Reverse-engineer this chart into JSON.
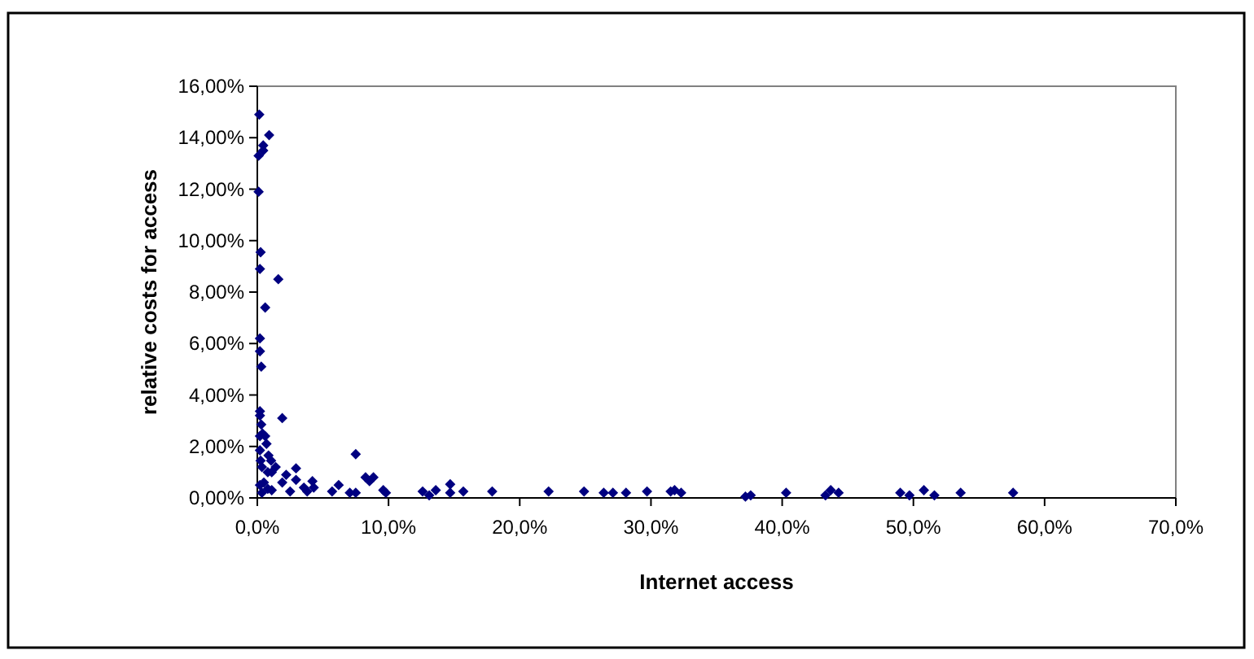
{
  "chart_data": {
    "type": "scatter",
    "xlabel": "Internet access",
    "ylabel": "relative costs for access",
    "marker": "diamond",
    "grid": false,
    "xlim": [
      0,
      70
    ],
    "xticks": [
      {
        "value": 0,
        "label": "0,0%"
      },
      {
        "value": 10,
        "label": "10,0%"
      },
      {
        "value": 20,
        "label": "20,0%"
      },
      {
        "value": 30,
        "label": "30,0%"
      },
      {
        "value": 40,
        "label": "40,0%"
      },
      {
        "value": 50,
        "label": "50,0%"
      },
      {
        "value": 60,
        "label": "60,0%"
      },
      {
        "value": 70,
        "label": "70,0%"
      }
    ],
    "ylim": [
      0,
      16
    ],
    "yticks": [
      {
        "value": 0,
        "label": "0,00%"
      },
      {
        "value": 2,
        "label": "2,00%"
      },
      {
        "value": 4,
        "label": "4,00%"
      },
      {
        "value": 6,
        "label": "6,00%"
      },
      {
        "value": 8,
        "label": "8,00%"
      },
      {
        "value": 10,
        "label": "10,00%"
      },
      {
        "value": 12,
        "label": "12,00%"
      },
      {
        "value": 14,
        "label": "14,00%"
      },
      {
        "value": 16,
        "label": "16,00%"
      }
    ],
    "series": [
      {
        "color": "#000080",
        "x": [
          0.15,
          0.9,
          0.45,
          0.45,
          0.1,
          0.1,
          0.25,
          0.2,
          1.6,
          0.6,
          0.2,
          0.2,
          0.3,
          0.2,
          0.2,
          0.3,
          1.9,
          0.2,
          0.4,
          0.6,
          0.7,
          0.2,
          0.25,
          0.85,
          1.05,
          0.35,
          1.4,
          0.8,
          1.1,
          2.95,
          2.2,
          1.9,
          2.95,
          0.2,
          0.5,
          0.8,
          0.35,
          1.1,
          2.5,
          3.55,
          4.2,
          4.3,
          3.8,
          5.7,
          6.2,
          7.05,
          7.5,
          7.5,
          8.25,
          8.55,
          8.85,
          9.6,
          9.8,
          12.6,
          13.1,
          13.6,
          14.7,
          14.7,
          15.7,
          17.9,
          22.2,
          24.9,
          26.4,
          27.1,
          28.1,
          29.7,
          31.5,
          31.8,
          32.3,
          37.2,
          37.6,
          40.3,
          43.3,
          43.7,
          44.3,
          49.0,
          49.7,
          50.8,
          51.6,
          53.6,
          57.6
        ],
        "values": [
          14.9,
          14.1,
          13.7,
          13.5,
          13.3,
          11.9,
          9.55,
          8.9,
          8.5,
          7.4,
          6.2,
          5.7,
          5.1,
          3.37,
          3.2,
          2.85,
          3.1,
          2.4,
          2.5,
          2.4,
          2.1,
          1.85,
          1.45,
          1.65,
          1.45,
          1.2,
          1.2,
          1.0,
          1.0,
          1.15,
          0.9,
          0.6,
          0.7,
          0.5,
          0.6,
          0.35,
          0.2,
          0.3,
          0.25,
          0.4,
          0.65,
          0.4,
          0.25,
          0.25,
          0.5,
          0.2,
          0.2,
          1.7,
          0.8,
          0.65,
          0.8,
          0.3,
          0.2,
          0.25,
          0.1,
          0.3,
          0.53,
          0.2,
          0.25,
          0.25,
          0.25,
          0.25,
          0.2,
          0.2,
          0.2,
          0.25,
          0.25,
          0.3,
          0.2,
          0.05,
          0.1,
          0.2,
          0.1,
          0.3,
          0.2,
          0.2,
          0.1,
          0.3,
          0.1,
          0.2,
          0.2
        ]
      }
    ]
  }
}
